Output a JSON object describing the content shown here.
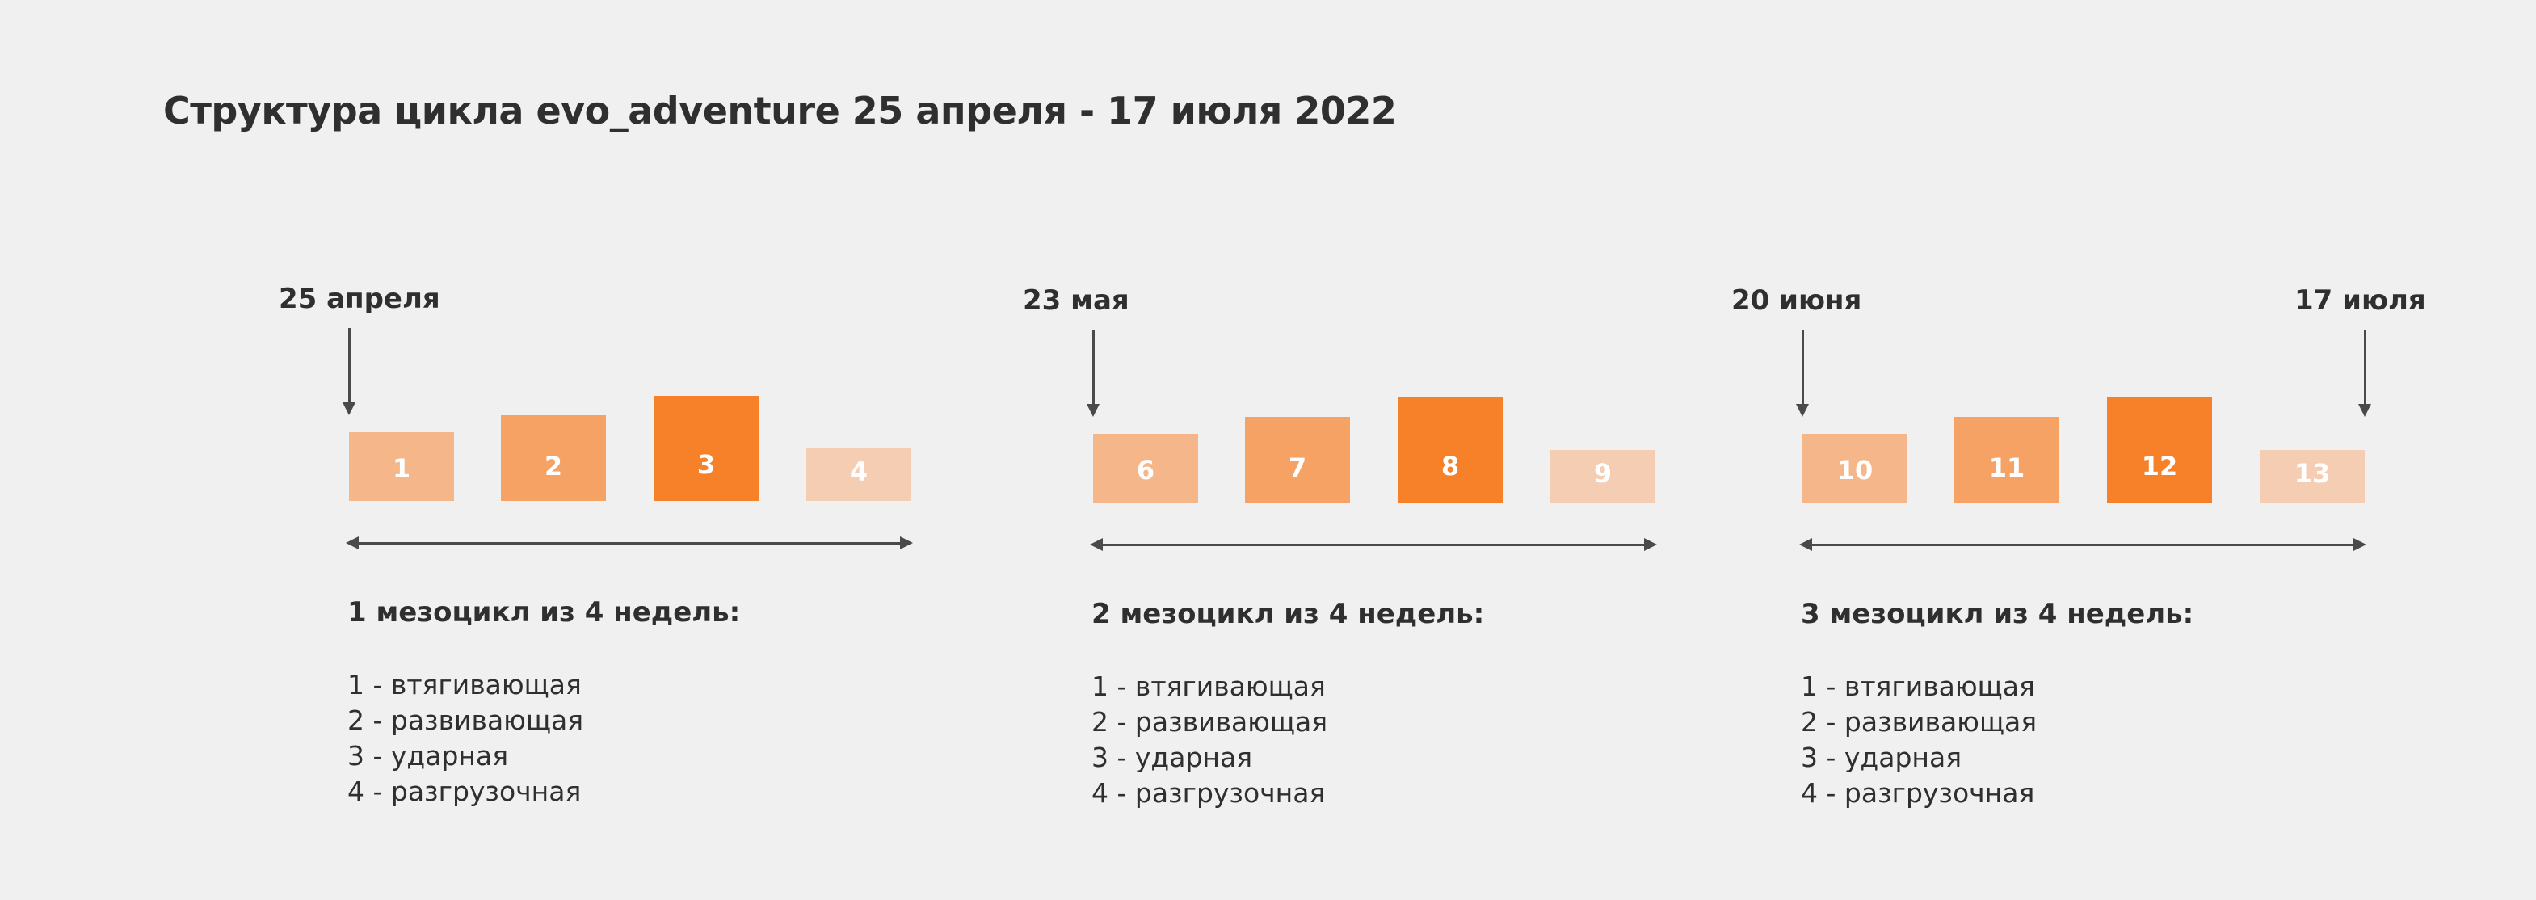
{
  "title": "Структура цикла evo_adventure 25 апреля - 17 июля 2022",
  "colors": {
    "background": "#f0f0f0",
    "text": "#2f2f2f",
    "week_light": "#f5b78a",
    "week_medium": "#f5a264",
    "week_strong": "#f68129",
    "week_pale": "#f4cdb2",
    "arrow": "#4a4a4a"
  },
  "dates": {
    "d1": "25 апреля",
    "d2": "23 мая",
    "d3": "20 июня",
    "d4": "17 июля"
  },
  "mesocycles": [
    {
      "heading": "1 мезоцикл из 4 недель:",
      "weeks": [
        "1",
        "2",
        "3",
        "4"
      ],
      "items": [
        "1 - втягивающая",
        "2 - развивающая",
        "3 - ударная",
        "4 - разгрузочная"
      ]
    },
    {
      "heading": "2 мезоцикл из 4 недель:",
      "weeks": [
        "6",
        "7",
        "8",
        "9"
      ],
      "items": [
        "1 - втягивающая",
        "2 - развивающая",
        "3 - ударная",
        "4 - разгрузочная"
      ]
    },
    {
      "heading": "3 мезоцикл из 4 недель:",
      "weeks": [
        "10",
        "11",
        "12",
        "13"
      ],
      "items": [
        "1 - втягивающая",
        "2 - развивающая",
        "3 - ударная",
        "4 - разгрузочная"
      ]
    }
  ]
}
